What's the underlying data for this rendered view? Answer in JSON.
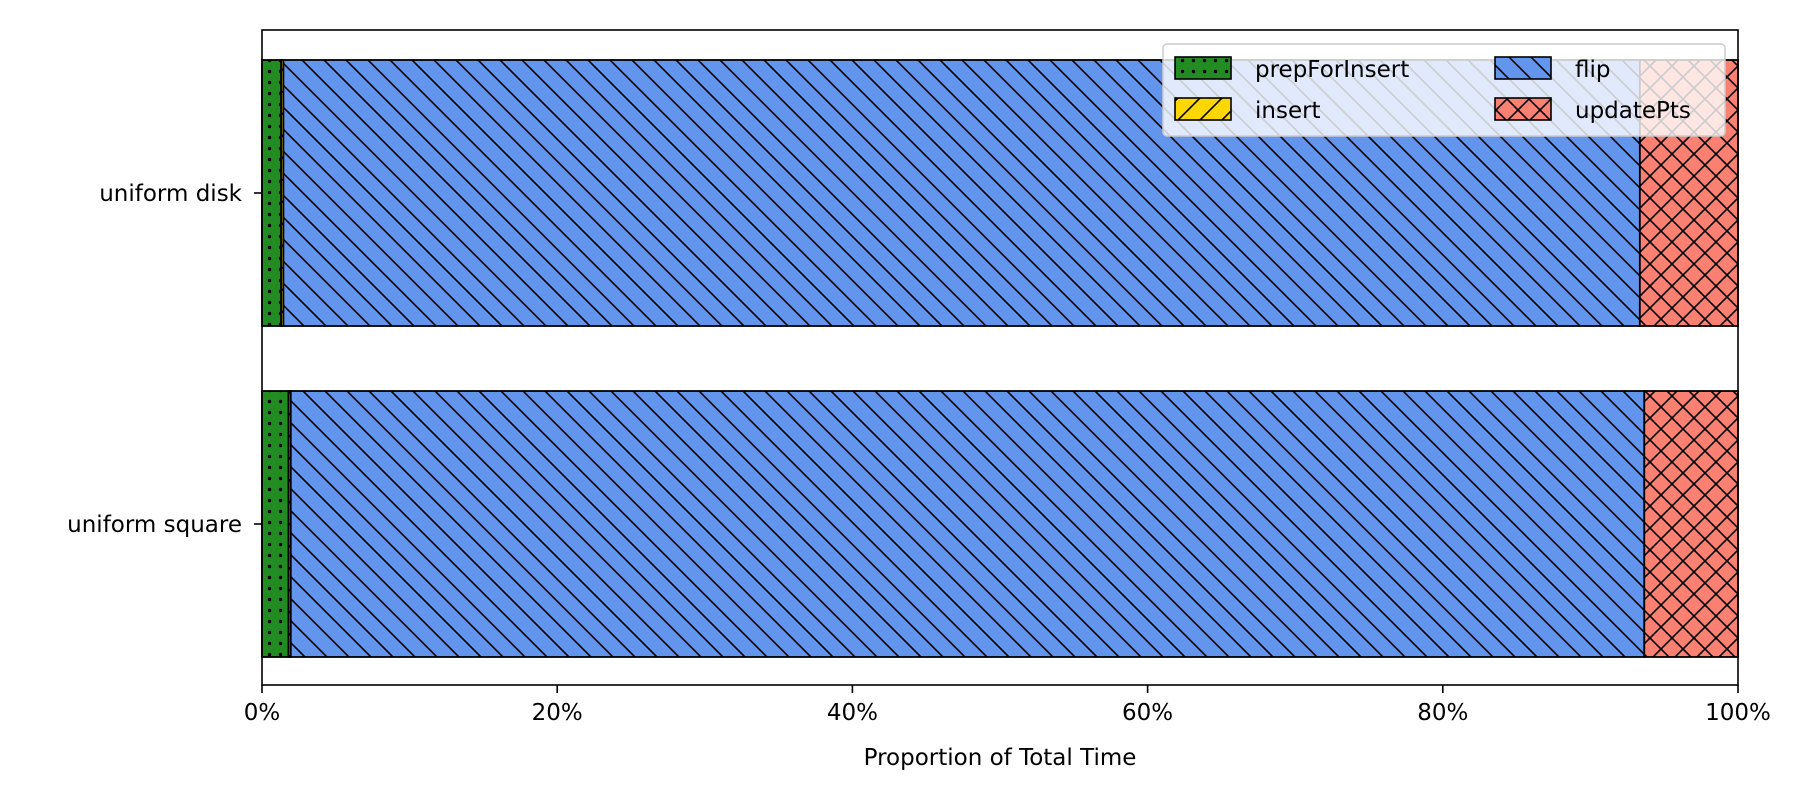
{
  "chart_data": {
    "type": "bar",
    "orientation": "horizontal",
    "stacked": true,
    "title": "",
    "xlabel": "Proportion of Total Time",
    "ylabel": "",
    "xlim": [
      0,
      1
    ],
    "x_ticks": [
      0,
      0.2,
      0.4,
      0.6,
      0.8,
      1.0
    ],
    "x_tick_labels": [
      "0%",
      "20%",
      "40%",
      "60%",
      "80%",
      "100%"
    ],
    "categories": [
      "uniform disk",
      "uniform square"
    ],
    "series": [
      {
        "name": "prepForInsert",
        "color": "#228B22",
        "hatch": "dots",
        "values": [
          0.013,
          0.018
        ]
      },
      {
        "name": "insert",
        "color": "#FFD700",
        "hatch": "slash",
        "values": [
          0.0015,
          0.0015
        ]
      },
      {
        "name": "flip",
        "color": "#6495ED",
        "hatch": "backslash",
        "values": [
          0.919,
          0.917
        ]
      },
      {
        "name": "updatePts",
        "color": "#FA8072",
        "hatch": "cross",
        "values": [
          0.0665,
          0.0635
        ]
      }
    ],
    "legend": {
      "placement": "top-right",
      "columns": 2
    },
    "grid": false
  }
}
